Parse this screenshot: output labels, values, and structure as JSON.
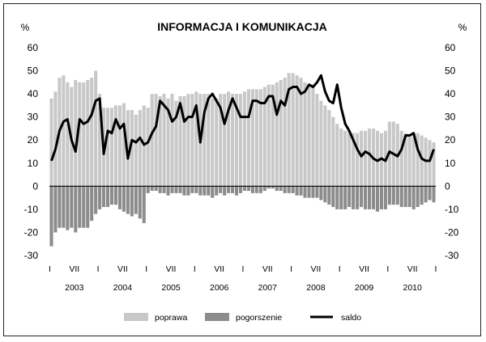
{
  "chart_data": {
    "type": "bar",
    "title": "INFORMACJA I KOMUNIKACJA",
    "y_unit_left": "%",
    "y_unit_right": "%",
    "ylim": [
      -30,
      60
    ],
    "yticks": [
      -30,
      -20,
      -10,
      0,
      10,
      20,
      30,
      40,
      50,
      60
    ],
    "period_start": "2003-01",
    "period_end": "2010-12",
    "month_tick_labels": [
      "I",
      "VII"
    ],
    "years": [
      "2003",
      "2004",
      "2005",
      "2006",
      "2007",
      "2008",
      "2009",
      "2010"
    ],
    "series": [
      {
        "name": "poprawa",
        "type": "bar",
        "color": "#c8c8c8",
        "values": [
          38,
          41,
          47,
          48,
          45,
          43,
          46,
          45,
          45,
          46,
          47,
          50,
          40,
          34,
          34,
          34,
          35,
          35,
          36,
          33,
          33,
          31,
          33,
          35,
          34,
          40,
          40,
          39,
          40,
          38,
          40,
          37,
          39,
          39,
          40,
          40,
          41,
          40,
          40,
          40,
          38,
          38,
          40,
          40,
          41,
          40,
          40,
          40,
          41,
          42,
          42,
          42,
          42,
          43,
          44,
          44,
          45,
          46,
          47,
          49,
          49,
          48,
          47,
          45,
          43,
          44,
          40,
          37,
          35,
          33,
          30,
          27,
          25,
          24,
          24,
          23,
          23,
          24,
          24,
          25,
          25,
          24,
          23,
          24,
          28,
          28,
          27,
          24,
          23,
          22,
          23,
          23,
          22,
          21,
          20,
          19
        ]
      },
      {
        "name": "pogorszenie",
        "type": "bar",
        "color": "#8c8c8c",
        "values": [
          -26,
          -20,
          -18,
          -18,
          -19,
          -18,
          -20,
          -18,
          -18,
          -18,
          -15,
          -12,
          -10,
          -9,
          -9,
          -8,
          -8,
          -10,
          -11,
          -12,
          -13,
          -12,
          -14,
          -16,
          -3,
          -2,
          -2,
          -3,
          -3,
          -4,
          -3,
          -3,
          -3,
          -4,
          -4,
          -3,
          -3,
          -4,
          -4,
          -4,
          -5,
          -4,
          -3,
          -4,
          -3,
          -3,
          -4,
          -3,
          -2,
          -2,
          -3,
          -3,
          -3,
          -2,
          -1,
          -1,
          -2,
          -2,
          -3,
          -3,
          -3,
          -4,
          -4,
          -5,
          -5,
          -5,
          -5,
          -6,
          -7,
          -8,
          -9,
          -10,
          -10,
          -10,
          -9,
          -10,
          -10,
          -9,
          -10,
          -10,
          -10,
          -11,
          -10,
          -10,
          -8,
          -8,
          -8,
          -9,
          -9,
          -9,
          -10,
          -9,
          -8,
          -7,
          -6,
          -7
        ]
      },
      {
        "name": "saldo",
        "type": "line",
        "color": "#000000",
        "values": [
          11,
          16,
          24,
          28,
          29,
          20,
          15,
          29,
          27,
          28,
          31,
          37,
          38,
          14,
          24,
          23,
          29,
          25,
          27,
          12,
          20,
          19,
          21,
          18,
          19,
          23,
          26,
          37,
          35,
          33,
          28,
          30,
          36,
          28,
          30,
          30,
          35,
          19,
          32,
          38,
          40,
          37,
          34,
          27,
          33,
          38,
          34,
          30,
          30,
          30,
          37,
          37,
          36,
          36,
          39,
          39,
          31,
          37,
          35,
          42,
          43,
          43,
          40,
          41,
          44,
          43,
          45,
          48,
          41,
          37,
          36,
          44,
          34,
          27,
          24,
          20,
          16,
          13,
          15,
          14,
          12,
          11,
          12,
          11,
          15,
          14,
          13,
          16,
          22,
          22,
          23,
          16,
          12,
          11,
          11,
          16
        ]
      }
    ],
    "legend": [
      {
        "label": "poprawa",
        "color": "#c8c8c8",
        "kind": "bar"
      },
      {
        "label": "pogorszenie",
        "color": "#8c8c8c",
        "kind": "bar"
      },
      {
        "label": "saldo",
        "color": "#000000",
        "kind": "line"
      }
    ]
  }
}
